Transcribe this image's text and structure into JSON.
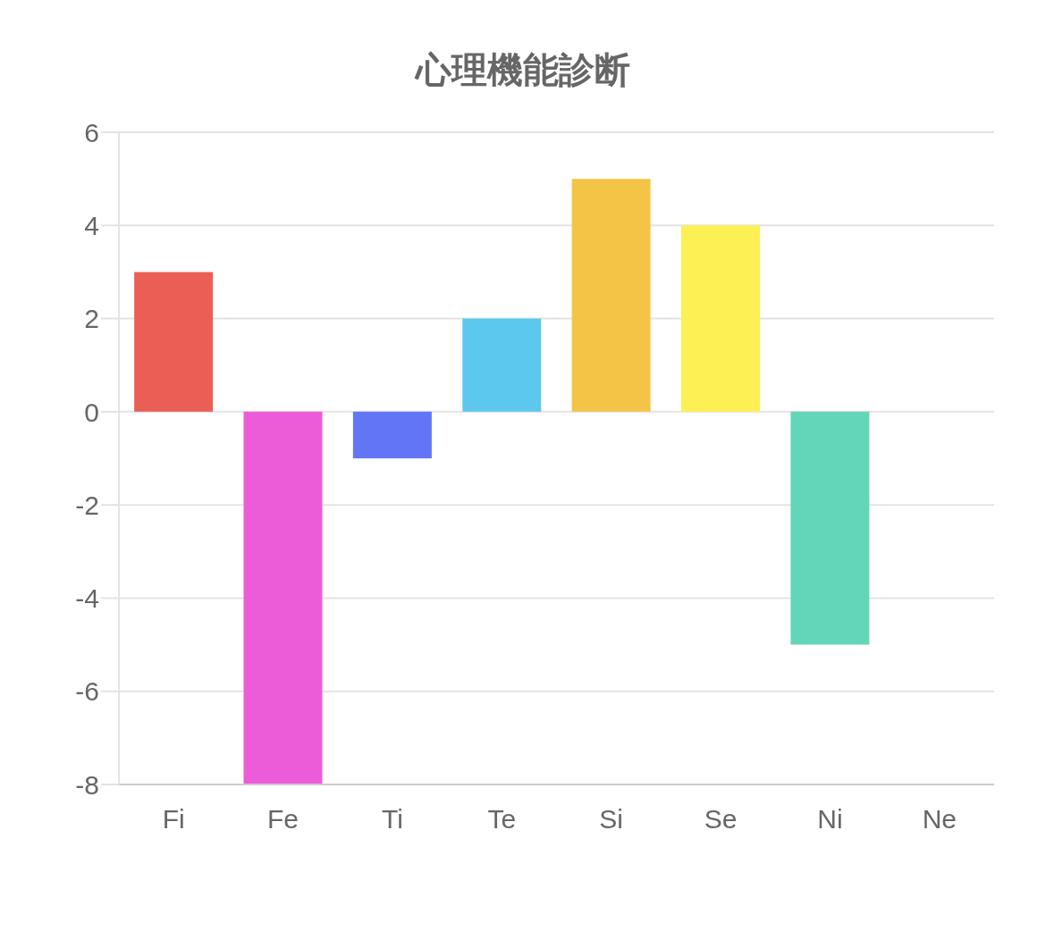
{
  "chart_data": {
    "type": "bar",
    "title": "心理機能診断",
    "categories": [
      "Fi",
      "Fe",
      "Ti",
      "Te",
      "Si",
      "Se",
      "Ni",
      "Ne"
    ],
    "values": [
      3,
      -8,
      -1,
      2,
      5,
      4,
      -5,
      0
    ],
    "colors": [
      "#eb5e55",
      "#ec5cd8",
      "#6276f5",
      "#5dc8ee",
      "#f4c446",
      "#fcf055",
      "#64d6b8",
      "#f29b4b"
    ],
    "ylim": [
      -8,
      6
    ],
    "yticks": [
      -8,
      -6,
      -4,
      -2,
      0,
      2,
      4,
      6
    ],
    "grid": "y"
  }
}
